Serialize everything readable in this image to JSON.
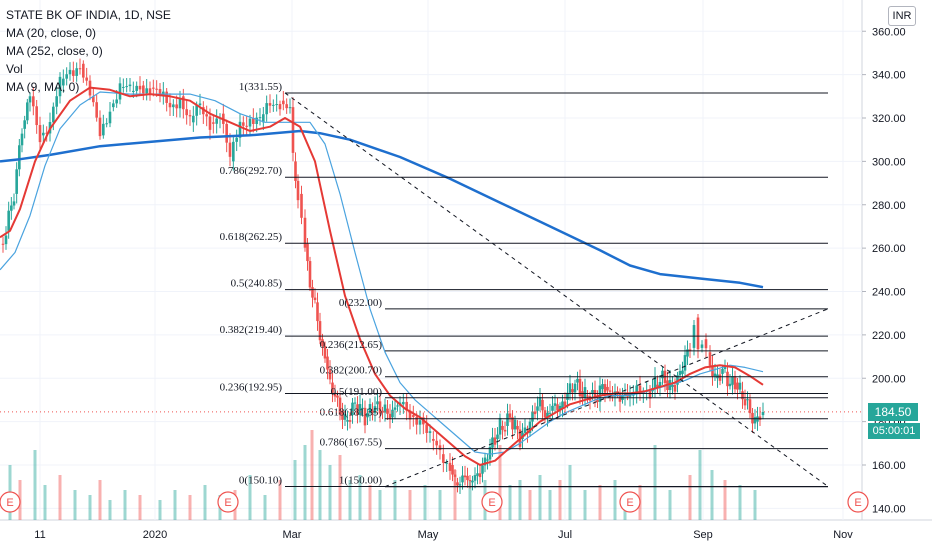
{
  "chart_data": {
    "type": "candlestick",
    "symbol_title": "STATE BK OF INDIA, 1D, NSE",
    "currency": "INR",
    "indicators": [
      {
        "label": "MA (20, close, 0)",
        "color": "#e53935"
      },
      {
        "label": "MA (252, close, 0)",
        "color": "#1e6fce"
      },
      {
        "label": "Vol",
        "color": "#26a69a"
      },
      {
        "label": "MA (9, MA, 0)",
        "color": "#4aa3df"
      }
    ],
    "ylim": [
      130,
      370
    ],
    "y_ticks": [
      "140.00",
      "160.00",
      "180.00",
      "200.00",
      "220.00",
      "240.00",
      "260.00",
      "280.00",
      "300.00",
      "320.00",
      "340.00",
      "360.00"
    ],
    "x_ticks": [
      "11",
      "2020",
      "Mar",
      "May",
      "Jul",
      "Sep",
      "Nov"
    ],
    "last_price": "184.50",
    "countdown": "05:00:01",
    "colors": {
      "up": "#26a69a",
      "down": "#ef5350",
      "ma20": "#e53935",
      "ma252": "#1e6fce",
      "ma9": "#4aa3df",
      "price_tag": "#26a69a",
      "time_tag": "#26a69a"
    },
    "price_path": [
      [
        0,
        262
      ],
      [
        6,
        268
      ],
      [
        14,
        285
      ],
      [
        22,
        315
      ],
      [
        30,
        330
      ],
      [
        40,
        312
      ],
      [
        50,
        318
      ],
      [
        60,
        335
      ],
      [
        70,
        342
      ],
      [
        80,
        345
      ],
      [
        90,
        330
      ],
      [
        100,
        312
      ],
      [
        110,
        325
      ],
      [
        120,
        334
      ],
      [
        130,
        332
      ],
      [
        140,
        335
      ],
      [
        150,
        334
      ],
      [
        160,
        330
      ],
      [
        170,
        325
      ],
      [
        180,
        330
      ],
      [
        190,
        318
      ],
      [
        200,
        325
      ],
      [
        210,
        318
      ],
      [
        220,
        322
      ],
      [
        230,
        300
      ],
      [
        240,
        318
      ],
      [
        250,
        320
      ],
      [
        260,
        318
      ],
      [
        270,
        326
      ],
      [
        280,
        328
      ],
      [
        290,
        325
      ],
      [
        293,
        300
      ],
      [
        298,
        285
      ],
      [
        305,
        262
      ],
      [
        310,
        242
      ],
      [
        315,
        235
      ],
      [
        320,
        218
      ],
      [
        325,
        210
      ],
      [
        330,
        198
      ],
      [
        335,
        192
      ],
      [
        340,
        185
      ],
      [
        345,
        180
      ],
      [
        350,
        183
      ],
      [
        355,
        188
      ],
      [
        360,
        186
      ],
      [
        365,
        182
      ],
      [
        370,
        185
      ],
      [
        375,
        188
      ],
      [
        380,
        185
      ],
      [
        385,
        186
      ],
      [
        390,
        182
      ],
      [
        395,
        187
      ],
      [
        400,
        188
      ],
      [
        410,
        183
      ],
      [
        420,
        182
      ],
      [
        430,
        172
      ],
      [
        440,
        165
      ],
      [
        450,
        160
      ],
      [
        455,
        152
      ],
      [
        460,
        152
      ],
      [
        465,
        155
      ],
      [
        470,
        152
      ],
      [
        475,
        155
      ],
      [
        480,
        156
      ],
      [
        485,
        162
      ],
      [
        490,
        168
      ],
      [
        495,
        172
      ],
      [
        500,
        178
      ],
      [
        505,
        178
      ],
      [
        510,
        182
      ],
      [
        515,
        178
      ],
      [
        520,
        172
      ],
      [
        525,
        175
      ],
      [
        530,
        180
      ],
      [
        535,
        185
      ],
      [
        540,
        190
      ],
      [
        545,
        182
      ],
      [
        550,
        185
      ],
      [
        555,
        188
      ],
      [
        560,
        186
      ],
      [
        565,
        190
      ],
      [
        570,
        195
      ],
      [
        575,
        198
      ],
      [
        580,
        194
      ],
      [
        585,
        192
      ],
      [
        590,
        193
      ],
      [
        595,
        190
      ],
      [
        600,
        195
      ],
      [
        605,
        196
      ],
      [
        610,
        192
      ],
      [
        615,
        194
      ],
      [
        620,
        190
      ],
      [
        625,
        193
      ],
      [
        630,
        192
      ],
      [
        640,
        193
      ],
      [
        650,
        194
      ],
      [
        655,
        197
      ],
      [
        660,
        200
      ],
      [
        665,
        199
      ],
      [
        670,
        196
      ],
      [
        675,
        197
      ],
      [
        680,
        202
      ],
      [
        685,
        210
      ],
      [
        690,
        214
      ],
      [
        694,
        228
      ],
      [
        698,
        214
      ],
      [
        702,
        218
      ],
      [
        706,
        212
      ],
      [
        710,
        206
      ],
      [
        715,
        200
      ],
      [
        720,
        202
      ],
      [
        725,
        203
      ],
      [
        730,
        197
      ],
      [
        735,
        198
      ],
      [
        740,
        194
      ],
      [
        745,
        190
      ],
      [
        750,
        184
      ],
      [
        755,
        180
      ],
      [
        760,
        183
      ],
      [
        763,
        184.5
      ]
    ],
    "ma20_path": [
      [
        0,
        265
      ],
      [
        10,
        268
      ],
      [
        20,
        278
      ],
      [
        35,
        300
      ],
      [
        50,
        315
      ],
      [
        70,
        328
      ],
      [
        90,
        334
      ],
      [
        110,
        333
      ],
      [
        130,
        330
      ],
      [
        150,
        331
      ],
      [
        170,
        330
      ],
      [
        190,
        328
      ],
      [
        210,
        322
      ],
      [
        230,
        318
      ],
      [
        250,
        314
      ],
      [
        270,
        316
      ],
      [
        285,
        320
      ],
      [
        300,
        316
      ],
      [
        315,
        300
      ],
      [
        330,
        268
      ],
      [
        345,
        238
      ],
      [
        360,
        218
      ],
      [
        375,
        202
      ],
      [
        390,
        192
      ],
      [
        405,
        186
      ],
      [
        420,
        182
      ],
      [
        435,
        176
      ],
      [
        450,
        170
      ],
      [
        465,
        164
      ],
      [
        480,
        160
      ],
      [
        495,
        162
      ],
      [
        510,
        168
      ],
      [
        525,
        174
      ],
      [
        540,
        180
      ],
      [
        555,
        184
      ],
      [
        570,
        188
      ],
      [
        585,
        190
      ],
      [
        600,
        192
      ],
      [
        615,
        193
      ],
      [
        630,
        193
      ],
      [
        645,
        194
      ],
      [
        660,
        196
      ],
      [
        675,
        198
      ],
      [
        690,
        202
      ],
      [
        705,
        205
      ],
      [
        720,
        206
      ],
      [
        735,
        205
      ],
      [
        750,
        201
      ],
      [
        763,
        197
      ]
    ],
    "ma252_path": [
      [
        0,
        300
      ],
      [
        20,
        301
      ],
      [
        50,
        303
      ],
      [
        100,
        307
      ],
      [
        150,
        309
      ],
      [
        200,
        311
      ],
      [
        250,
        312
      ],
      [
        300,
        314
      ],
      [
        320,
        313
      ],
      [
        350,
        310
      ],
      [
        400,
        302
      ],
      [
        450,
        292
      ],
      [
        500,
        281
      ],
      [
        550,
        270
      ],
      [
        600,
        259
      ],
      [
        630,
        252
      ],
      [
        660,
        248
      ],
      [
        700,
        246
      ],
      [
        740,
        244
      ],
      [
        763,
        242
      ]
    ],
    "ma9_path": [
      [
        0,
        250
      ],
      [
        15,
        258
      ],
      [
        30,
        275
      ],
      [
        45,
        298
      ],
      [
        60,
        315
      ],
      [
        80,
        326
      ],
      [
        100,
        332
      ],
      [
        130,
        331
      ],
      [
        160,
        331
      ],
      [
        190,
        331
      ],
      [
        215,
        328
      ],
      [
        240,
        322
      ],
      [
        265,
        318
      ],
      [
        290,
        318
      ],
      [
        310,
        318
      ],
      [
        325,
        308
      ],
      [
        340,
        285
      ],
      [
        355,
        258
      ],
      [
        370,
        232
      ],
      [
        385,
        212
      ],
      [
        400,
        198
      ],
      [
        415,
        190
      ],
      [
        430,
        184
      ],
      [
        445,
        178
      ],
      [
        460,
        172
      ],
      [
        475,
        166
      ],
      [
        490,
        165
      ],
      [
        505,
        166
      ],
      [
        520,
        170
      ],
      [
        535,
        175
      ],
      [
        550,
        180
      ],
      [
        565,
        184
      ],
      [
        580,
        187
      ],
      [
        595,
        190
      ],
      [
        610,
        192
      ],
      [
        625,
        192
      ],
      [
        640,
        193
      ],
      [
        655,
        195
      ],
      [
        670,
        197
      ],
      [
        685,
        199
      ],
      [
        700,
        202
      ],
      [
        715,
        204
      ],
      [
        730,
        206
      ],
      [
        745,
        205
      ],
      [
        763,
        203
      ]
    ],
    "volume": [
      [
        10,
        55
      ],
      [
        20,
        40
      ],
      [
        35,
        70
      ],
      [
        45,
        35
      ],
      [
        60,
        45
      ],
      [
        75,
        30
      ],
      [
        90,
        25
      ],
      [
        100,
        40
      ],
      [
        110,
        20
      ],
      [
        125,
        30
      ],
      [
        140,
        25
      ],
      [
        160,
        20
      ],
      [
        175,
        30
      ],
      [
        190,
        25
      ],
      [
        205,
        35
      ],
      [
        220,
        25
      ],
      [
        235,
        30
      ],
      [
        250,
        45
      ],
      [
        265,
        25
      ],
      [
        280,
        40
      ],
      [
        295,
        60
      ],
      [
        305,
        75
      ],
      [
        312,
        90
      ],
      [
        320,
        70
      ],
      [
        330,
        55
      ],
      [
        340,
        65
      ],
      [
        350,
        40
      ],
      [
        360,
        45
      ],
      [
        370,
        35
      ],
      [
        380,
        30
      ],
      [
        395,
        40
      ],
      [
        410,
        30
      ],
      [
        425,
        35
      ],
      [
        440,
        30
      ],
      [
        455,
        50
      ],
      [
        470,
        40
      ],
      [
        485,
        40
      ],
      [
        500,
        75
      ],
      [
        510,
        35
      ],
      [
        520,
        40
      ],
      [
        530,
        30
      ],
      [
        540,
        45
      ],
      [
        550,
        30
      ],
      [
        560,
        40
      ],
      [
        570,
        55
      ],
      [
        585,
        30
      ],
      [
        600,
        35
      ],
      [
        615,
        40
      ],
      [
        625,
        25
      ],
      [
        640,
        35
      ],
      [
        655,
        75
      ],
      [
        670,
        30
      ],
      [
        690,
        45
      ],
      [
        700,
        70
      ],
      [
        712,
        50
      ],
      [
        725,
        40
      ],
      [
        740,
        35
      ],
      [
        755,
        30
      ]
    ],
    "fib_left": {
      "x1": 285,
      "x2": 828,
      "levels": [
        {
          "label": "1(331.55)",
          "price": 331.55
        },
        {
          "label": "0.786(292.70)",
          "price": 292.7
        },
        {
          "label": "0.618(262.25)",
          "price": 262.25
        },
        {
          "label": "0.5(240.85)",
          "price": 240.85
        },
        {
          "label": "0.382(219.40)",
          "price": 219.4
        },
        {
          "label": "0.236(192.95)",
          "price": 192.95
        },
        {
          "label": "0(150.10)",
          "price": 150.1
        }
      ]
    },
    "fib_right": {
      "x1": 385,
      "x2": 828,
      "levels": [
        {
          "label": "0(232.00)",
          "price": 232.0
        },
        {
          "label": "0.236(212.65)",
          "price": 212.65
        },
        {
          "label": "0.382(200.70)",
          "price": 200.7
        },
        {
          "label": "0.5(191.00)",
          "price": 191.0
        },
        {
          "label": "0.618(181.35)",
          "price": 181.35
        },
        {
          "label": "0.786(167.55)",
          "price": 167.55
        },
        {
          "label": "1(150.00)",
          "price": 150.0
        }
      ]
    },
    "trend_lines": [
      {
        "from": [
          285,
          331.55
        ],
        "to": [
          828,
          150.1
        ]
      },
      {
        "from": [
          385,
          150.0
        ],
        "to": [
          828,
          232.0
        ]
      }
    ],
    "event_markers": [
      {
        "label": "E",
        "x": 10
      },
      {
        "label": "E",
        "x": 228
      },
      {
        "label": "E",
        "x": 492
      },
      {
        "label": "E",
        "x": 630
      },
      {
        "label": "E",
        "x": 858
      }
    ]
  }
}
